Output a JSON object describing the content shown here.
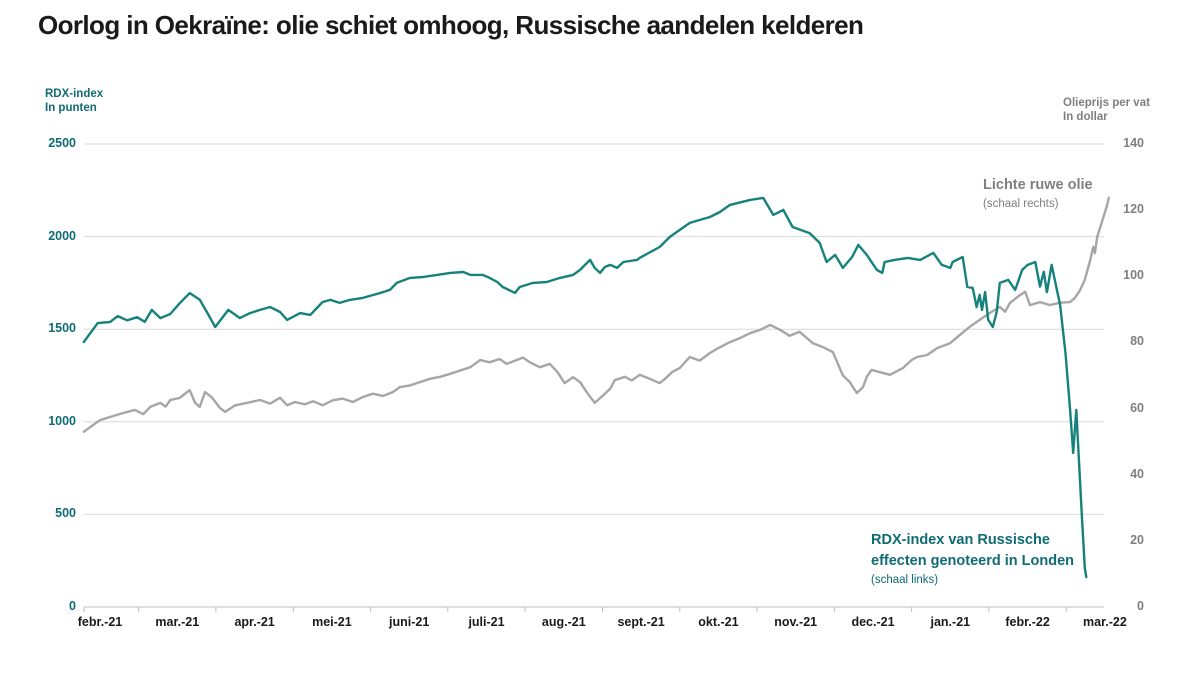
{
  "title": "Oorlog in Oekraïne: olie schiet omhoog, Russische aandelen kelderen",
  "colors": {
    "rdx_line": "#16827C",
    "rdx_text": "#0F6B74",
    "oil_line": "#A6A6A6",
    "oil_text": "#7F7F7F",
    "grid": "#D9D9D9",
    "axis": "#BFBFBF",
    "title": "#1A1A1A",
    "xlabel": "#1A1A1A"
  },
  "chart_data": {
    "type": "line",
    "title": "Oorlog in Oekraïne: olie schiet omhoog, Russische aandelen kelderen",
    "x_categories": [
      "febr.-21",
      "mar.-21",
      "apr.-21",
      "mei-21",
      "juni-21",
      "juli-21",
      "aug.-21",
      "sept.-21",
      "okt.-21",
      "nov.-21",
      "dec.-21",
      "jan.-21",
      "febr.-22",
      "mar.-22"
    ],
    "left_axis": {
      "label1": "RDX-index",
      "label2": "In punten",
      "lim": [
        0,
        2500
      ],
      "ticks": [
        2500,
        2000,
        1500,
        1000,
        500,
        0
      ]
    },
    "right_axis": {
      "label1": "Olieprijs per vat",
      "label2": "In dollar",
      "lim": [
        0,
        140
      ],
      "ticks": [
        140,
        120,
        100,
        80,
        60,
        40,
        20,
        0
      ]
    },
    "annotations": {
      "oil": {
        "label": "Lichte ruwe olie",
        "sub": "(schaal rechts)"
      },
      "rdx": {
        "line1": "RDX-index van Russische",
        "line2": "effecten genoteerd in Londen",
        "sub": "(schaal links)"
      }
    },
    "grid": "horizontal-only",
    "legend_position": "annotations-on-chart",
    "series": [
      {
        "id": "oil",
        "name": "Lichte ruwe olie",
        "axis": "right",
        "color": "#A6A6A6",
        "points": [
          [
            -0.21,
            53
          ],
          [
            0,
            56.5
          ],
          [
            0.26,
            58.4
          ],
          [
            0.45,
            59.6
          ],
          [
            0.56,
            58.3
          ],
          [
            0.65,
            60.5
          ],
          [
            0.78,
            61.7
          ],
          [
            0.85,
            60.6
          ],
          [
            0.91,
            62.6
          ],
          [
            1.03,
            63.2
          ],
          [
            1.16,
            65.6
          ],
          [
            1.23,
            61.7
          ],
          [
            1.29,
            60.5
          ],
          [
            1.36,
            65
          ],
          [
            1.45,
            63.3
          ],
          [
            1.55,
            60.2
          ],
          [
            1.62,
            59
          ],
          [
            1.75,
            61
          ],
          [
            1.9,
            61.7
          ],
          [
            2.07,
            62.6
          ],
          [
            2.2,
            61.5
          ],
          [
            2.33,
            63.3
          ],
          [
            2.42,
            61
          ],
          [
            2.52,
            62
          ],
          [
            2.65,
            61.3
          ],
          [
            2.76,
            62.2
          ],
          [
            2.88,
            61
          ],
          [
            3.01,
            62.5
          ],
          [
            3.14,
            63
          ],
          [
            3.27,
            62
          ],
          [
            3.4,
            63.5
          ],
          [
            3.53,
            64.5
          ],
          [
            3.66,
            63.8
          ],
          [
            3.79,
            65
          ],
          [
            3.88,
            66.5
          ],
          [
            4.01,
            67
          ],
          [
            4.14,
            68
          ],
          [
            4.27,
            69
          ],
          [
            4.4,
            69.6
          ],
          [
            4.53,
            70.5
          ],
          [
            4.66,
            71.5
          ],
          [
            4.79,
            72.5
          ],
          [
            4.92,
            74.7
          ],
          [
            5.04,
            74
          ],
          [
            5.17,
            75
          ],
          [
            5.26,
            73.5
          ],
          [
            5.37,
            74.5
          ],
          [
            5.47,
            75.4
          ],
          [
            5.56,
            74
          ],
          [
            5.69,
            72.5
          ],
          [
            5.82,
            73.5
          ],
          [
            5.92,
            71
          ],
          [
            6.01,
            67.7
          ],
          [
            6.12,
            69.5
          ],
          [
            6.21,
            68
          ],
          [
            6.31,
            64.5
          ],
          [
            6.4,
            61.7
          ],
          [
            6.51,
            64
          ],
          [
            6.6,
            66
          ],
          [
            6.66,
            68.6
          ],
          [
            6.79,
            69.6
          ],
          [
            6.88,
            68.5
          ],
          [
            6.98,
            70.2
          ],
          [
            7.11,
            69
          ],
          [
            7.24,
            67.7
          ],
          [
            7.31,
            69
          ],
          [
            7.4,
            71
          ],
          [
            7.5,
            72.3
          ],
          [
            7.63,
            75.6
          ],
          [
            7.76,
            74.5
          ],
          [
            7.89,
            76.8
          ],
          [
            8,
            78.3
          ],
          [
            8.15,
            80.1
          ],
          [
            8.28,
            81.3
          ],
          [
            8.41,
            82.8
          ],
          [
            8.54,
            83.8
          ],
          [
            8.67,
            85.3
          ],
          [
            8.8,
            83.8
          ],
          [
            8.92,
            82
          ],
          [
            9.05,
            83.2
          ],
          [
            9.22,
            79.8
          ],
          [
            9.35,
            78.6
          ],
          [
            9.48,
            77.1
          ],
          [
            9.61,
            70
          ],
          [
            9.7,
            68
          ],
          [
            9.79,
            64.7
          ],
          [
            9.87,
            66.5
          ],
          [
            9.92,
            69.6
          ],
          [
            9.98,
            71.7
          ],
          [
            10.09,
            71
          ],
          [
            10.22,
            70.2
          ],
          [
            10.39,
            72.3
          ],
          [
            10.5,
            74.7
          ],
          [
            10.57,
            75.6
          ],
          [
            10.7,
            76.2
          ],
          [
            10.83,
            78.3
          ],
          [
            11,
            79.8
          ],
          [
            11.12,
            82.2
          ],
          [
            11.25,
            84.7
          ],
          [
            11.38,
            86.8
          ],
          [
            11.51,
            88.9
          ],
          [
            11.64,
            90.7
          ],
          [
            11.71,
            89.3
          ],
          [
            11.77,
            91.9
          ],
          [
            11.9,
            94.3
          ],
          [
            11.97,
            95.3
          ],
          [
            12.03,
            91.3
          ],
          [
            12.16,
            92.2
          ],
          [
            12.29,
            91.3
          ],
          [
            12.42,
            92
          ],
          [
            12.55,
            92.2
          ],
          [
            12.61,
            93.4
          ],
          [
            12.68,
            95.9
          ],
          [
            12.74,
            98.9
          ],
          [
            12.81,
            104.9
          ],
          [
            12.85,
            108.9
          ],
          [
            12.87,
            107
          ],
          [
            12.9,
            111.9
          ],
          [
            12.94,
            114.9
          ],
          [
            12.98,
            117.9
          ],
          [
            13.03,
            121.6
          ],
          [
            13.05,
            123.7
          ]
        ]
      },
      {
        "id": "rdx",
        "name": "RDX-index van Russische effecten genoteerd in Londen",
        "axis": "left",
        "color": "#16827C",
        "points": [
          [
            -0.21,
            1431
          ],
          [
            -0.03,
            1533
          ],
          [
            0.13,
            1539
          ],
          [
            0.23,
            1571
          ],
          [
            0.35,
            1548
          ],
          [
            0.48,
            1565
          ],
          [
            0.58,
            1540
          ],
          [
            0.67,
            1604
          ],
          [
            0.78,
            1560
          ],
          [
            0.91,
            1582
          ],
          [
            1.03,
            1640
          ],
          [
            1.16,
            1695
          ],
          [
            1.29,
            1660
          ],
          [
            1.4,
            1580
          ],
          [
            1.49,
            1512
          ],
          [
            1.66,
            1604
          ],
          [
            1.81,
            1560
          ],
          [
            1.94,
            1587
          ],
          [
            2.07,
            1604
          ],
          [
            2.2,
            1620
          ],
          [
            2.33,
            1593
          ],
          [
            2.42,
            1550
          ],
          [
            2.59,
            1587
          ],
          [
            2.72,
            1577
          ],
          [
            2.88,
            1647
          ],
          [
            2.98,
            1658
          ],
          [
            3.1,
            1642
          ],
          [
            3.23,
            1658
          ],
          [
            3.4,
            1669
          ],
          [
            3.62,
            1695
          ],
          [
            3.75,
            1712
          ],
          [
            3.84,
            1750
          ],
          [
            4.01,
            1777
          ],
          [
            4.18,
            1782
          ],
          [
            4.36,
            1793
          ],
          [
            4.53,
            1804
          ],
          [
            4.7,
            1809
          ],
          [
            4.79,
            1793
          ],
          [
            4.95,
            1793
          ],
          [
            5.04,
            1777
          ],
          [
            5.14,
            1755
          ],
          [
            5.21,
            1728
          ],
          [
            5.37,
            1696
          ],
          [
            5.43,
            1728
          ],
          [
            5.6,
            1750
          ],
          [
            5.78,
            1755
          ],
          [
            5.95,
            1777
          ],
          [
            6.12,
            1793
          ],
          [
            6.21,
            1820
          ],
          [
            6.34,
            1874
          ],
          [
            6.4,
            1831
          ],
          [
            6.47,
            1804
          ],
          [
            6.53,
            1836
          ],
          [
            6.6,
            1847
          ],
          [
            6.69,
            1831
          ],
          [
            6.77,
            1863
          ],
          [
            6.95,
            1874
          ],
          [
            6.98,
            1885
          ],
          [
            7.24,
            1944
          ],
          [
            7.37,
            1998
          ],
          [
            7.5,
            2036
          ],
          [
            7.63,
            2074
          ],
          [
            7.89,
            2106
          ],
          [
            8.02,
            2133
          ],
          [
            8.15,
            2171
          ],
          [
            8.41,
            2198
          ],
          [
            8.58,
            2209
          ],
          [
            8.71,
            2117
          ],
          [
            8.84,
            2144
          ],
          [
            8.96,
            2052
          ],
          [
            9.18,
            2019
          ],
          [
            9.31,
            1966
          ],
          [
            9.4,
            1863
          ],
          [
            9.51,
            1901
          ],
          [
            9.61,
            1831
          ],
          [
            9.73,
            1890
          ],
          [
            9.81,
            1955
          ],
          [
            9.92,
            1901
          ],
          [
            10.05,
            1820
          ],
          [
            10.12,
            1804
          ],
          [
            10.15,
            1863
          ],
          [
            10.28,
            1874
          ],
          [
            10.45,
            1885
          ],
          [
            10.61,
            1874
          ],
          [
            10.78,
            1912
          ],
          [
            10.89,
            1847
          ],
          [
            11,
            1831
          ],
          [
            11.03,
            1863
          ],
          [
            11.16,
            1890
          ],
          [
            11.22,
            1728
          ],
          [
            11.29,
            1723
          ],
          [
            11.34,
            1620
          ],
          [
            11.38,
            1685
          ],
          [
            11.41,
            1604
          ],
          [
            11.45,
            1701
          ],
          [
            11.49,
            1550
          ],
          [
            11.55,
            1512
          ],
          [
            11.6,
            1593
          ],
          [
            11.64,
            1750
          ],
          [
            11.75,
            1766
          ],
          [
            11.84,
            1712
          ],
          [
            11.93,
            1820
          ],
          [
            12,
            1847
          ],
          [
            12.1,
            1863
          ],
          [
            12.16,
            1730
          ],
          [
            12.21,
            1810
          ],
          [
            12.25,
            1700
          ],
          [
            12.31,
            1847
          ],
          [
            12.42,
            1631
          ],
          [
            12.49,
            1371
          ],
          [
            12.55,
            1064
          ],
          [
            12.59,
            832
          ],
          [
            12.63,
            1064
          ],
          [
            12.7,
            508
          ],
          [
            12.74,
            211
          ],
          [
            12.76,
            162
          ]
        ]
      }
    ]
  }
}
